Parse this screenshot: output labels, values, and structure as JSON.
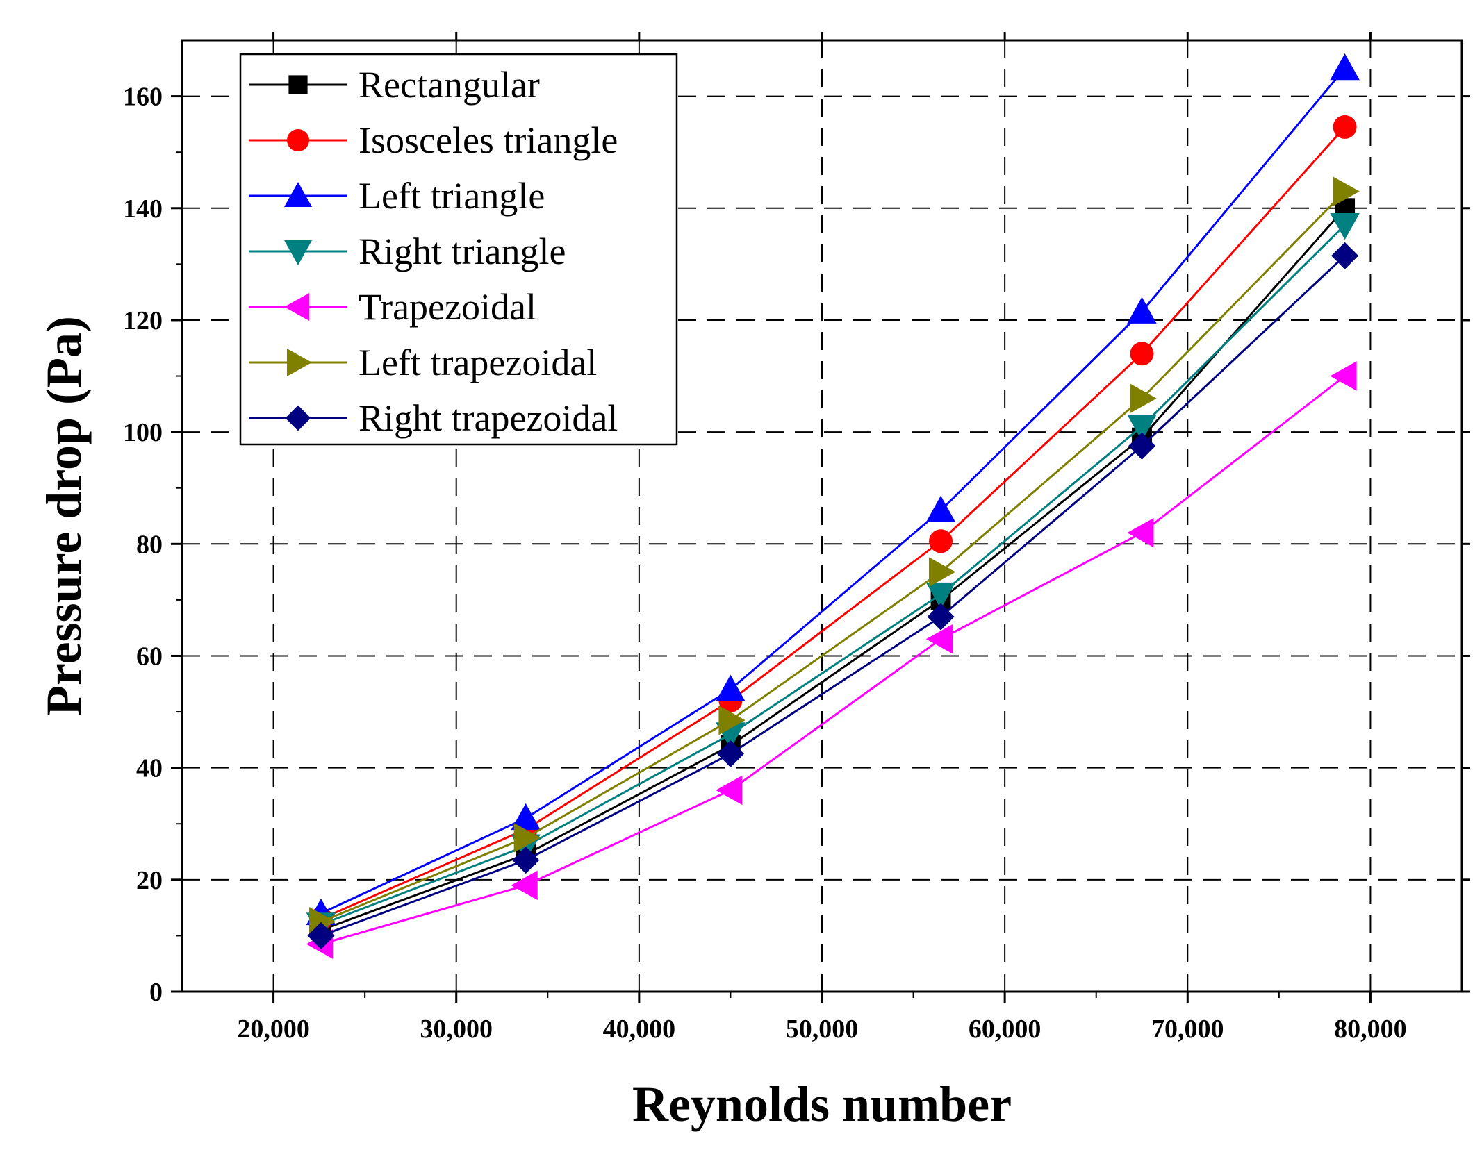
{
  "chart_data": {
    "type": "line",
    "title": "",
    "xlabel": "Reynolds number",
    "ylabel": "Pressure drop (Pa)",
    "xlim": [
      15000,
      85000
    ],
    "ylim": [
      0,
      170
    ],
    "xticks": [
      20000,
      30000,
      40000,
      50000,
      60000,
      70000,
      80000
    ],
    "yticks": [
      0,
      20,
      40,
      60,
      80,
      100,
      120,
      140,
      160
    ],
    "xtick_labels": [
      "20,000",
      "30,000",
      "40,000",
      "50,000",
      "60,000",
      "70,000",
      "80,000"
    ],
    "ytick_labels": [
      "0",
      "20",
      "40",
      "60",
      "80",
      "100",
      "120",
      "140",
      "160"
    ],
    "grid": true,
    "legend_position": "top-left",
    "x": [
      22600,
      33800,
      45000,
      56500,
      67500,
      78600
    ],
    "series": [
      {
        "name": "Rectangular",
        "color": "#000000",
        "marker": "square",
        "values": [
          11,
          24.5,
          44,
          70,
          99,
          140
        ]
      },
      {
        "name": "Isosceles triangle",
        "color": "#ff0000",
        "marker": "circle",
        "values": [
          13,
          29,
          52,
          80.5,
          114,
          154.5
        ]
      },
      {
        "name": "Left triangle",
        "color": "#0000ff",
        "marker": "triangle-up",
        "values": [
          14,
          31,
          54,
          86,
          121.5,
          165
        ]
      },
      {
        "name": "Right triangle",
        "color": "#008080",
        "marker": "triangle-down",
        "values": [
          12,
          26,
          46,
          71,
          101,
          137
        ]
      },
      {
        "name": "Trapezoidal",
        "color": "#ff00ff",
        "marker": "triangle-left",
        "values": [
          8.5,
          19,
          36,
          63,
          82,
          110
        ]
      },
      {
        "name": "Left trapezoidal",
        "color": "#808000",
        "marker": "triangle-right",
        "values": [
          12.5,
          27.5,
          48.5,
          75,
          106,
          143
        ]
      },
      {
        "name": "Right trapezoidal",
        "color": "#000080",
        "marker": "diamond",
        "values": [
          10,
          23.5,
          42.5,
          67,
          97.5,
          131.5
        ]
      }
    ]
  }
}
